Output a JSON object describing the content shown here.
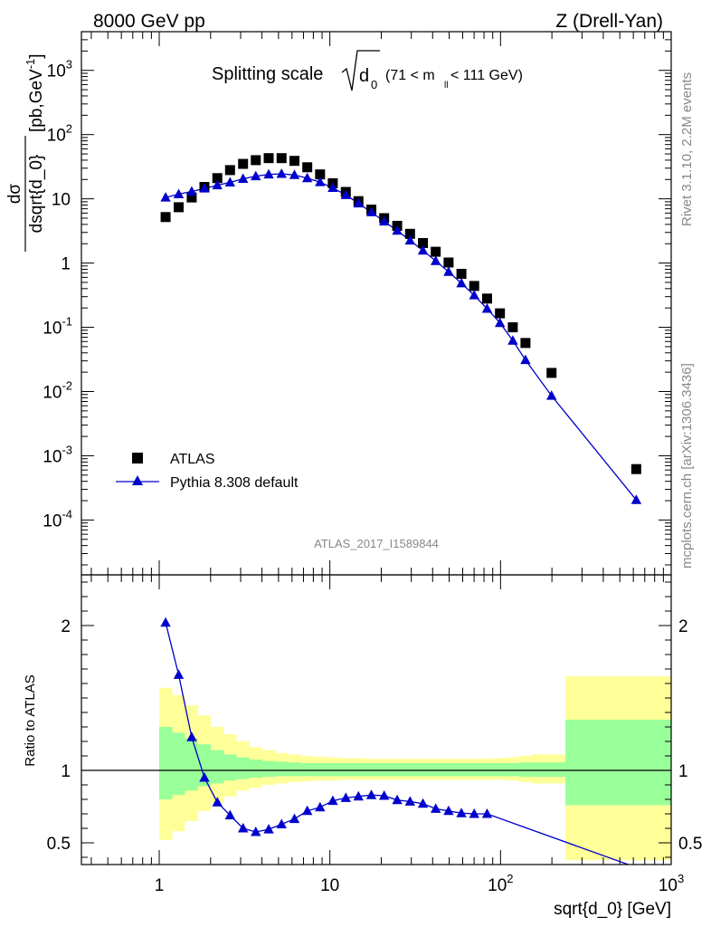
{
  "header": {
    "left": "8000 GeV pp",
    "right": "Z (Drell-Yan)"
  },
  "side_labels": {
    "rivet": "Rivet 3.1.10,  2.2M events",
    "mcplots": "mcplots.cern.ch [arXiv:1306.3436]"
  },
  "chart_data": [
    {
      "type": "scatter",
      "panel": "main",
      "title": "Splitting scale √d0 (71 < m_ll < 111 GeV)",
      "title_parts": {
        "main": "Splitting scale",
        "sub": "0",
        "var": "d",
        "range": "(71 < m",
        "range_sub": "ll",
        "range_end": " < 111 GeV)"
      },
      "analysis_label": "ATLAS_2017_I1589844",
      "ylabel": "dσ/dsqrt{d_0} [pb,GeV⁻¹]",
      "ylabel_parts": {
        "num": "dσ",
        "den": "dsqrt{d_0}",
        "unit": "[pb,GeV",
        "unit_sup": "-1",
        "unit_end": "]"
      },
      "xlabel": "sqrt{d_0} [GeV]",
      "xscale": "log",
      "yscale": "log",
      "xlim": [
        0.35,
        1000
      ],
      "ylim": [
        1.4e-05,
        4000
      ],
      "legend_position": "lower-left",
      "y_tick_labels": [
        {
          "value": 0.0001,
          "base": "10",
          "exp": "-4"
        },
        {
          "value": 0.001,
          "base": "10",
          "exp": "-3"
        },
        {
          "value": 0.01,
          "base": "10",
          "exp": "-2"
        },
        {
          "value": 0.1,
          "base": "10",
          "exp": "-1"
        },
        {
          "value": 1,
          "base": "1",
          "exp": ""
        },
        {
          "value": 10,
          "base": "10",
          "exp": ""
        },
        {
          "value": 100,
          "base": "10",
          "exp": "2"
        },
        {
          "value": 1000,
          "base": "10",
          "exp": "3"
        }
      ],
      "series": [
        {
          "name": "ATLAS",
          "marker": "square",
          "color": "#000000",
          "x": [
            1.09,
            1.3,
            1.55,
            1.84,
            2.19,
            2.6,
            3.1,
            3.68,
            4.38,
            5.21,
            6.2,
            7.37,
            8.76,
            10.4,
            12.4,
            14.7,
            17.5,
            20.8,
            24.8,
            29.5,
            35.1,
            41.7,
            49.6,
            59.0,
            70.1,
            83.4,
            99.2,
            118,
            140,
            199,
            624
          ],
          "y": [
            5.2,
            7.4,
            10.5,
            15.3,
            21,
            28,
            35,
            40,
            43,
            43,
            39,
            31,
            24,
            17.5,
            12.8,
            9.2,
            6.8,
            5.0,
            3.8,
            2.85,
            2.05,
            1.5,
            1.02,
            0.68,
            0.44,
            0.28,
            0.165,
            0.1,
            0.057,
            0.0195,
            0.00062
          ]
        },
        {
          "name": "Pythia 8.308 default",
          "marker": "triangle",
          "color": "#0000cc",
          "x": [
            1.09,
            1.3,
            1.55,
            1.84,
            2.19,
            2.6,
            3.1,
            3.68,
            4.38,
            5.21,
            6.2,
            7.37,
            8.76,
            10.4,
            12.4,
            14.7,
            17.5,
            20.8,
            24.8,
            29.5,
            35.1,
            41.7,
            49.6,
            59.0,
            70.1,
            83.4,
            99.2,
            118,
            140,
            199,
            624
          ],
          "y": [
            10.5,
            11.8,
            13.0,
            14.5,
            16.3,
            18.0,
            20.5,
            22.5,
            24.0,
            24.5,
            23.5,
            21.0,
            18.2,
            14.8,
            11.5,
            8.5,
            6.2,
            4.45,
            3.2,
            2.25,
            1.57,
            1.08,
            0.73,
            0.485,
            0.315,
            0.195,
            0.117,
            0.062,
            0.031,
            0.0086,
            0.000205
          ]
        }
      ]
    },
    {
      "type": "line",
      "panel": "ratio",
      "ylabel": "Ratio to ATLAS",
      "xlabel": "sqrt{d_0} [GeV]",
      "xscale": "log",
      "xlim": [
        0.35,
        1000
      ],
      "ylim": [
        0.35,
        2.35
      ],
      "y_ticks_major": [
        0.5,
        1,
        2
      ],
      "y_tick_labels": [
        "0.5",
        "1",
        "2"
      ],
      "x_tick_labels": [
        {
          "value": 1,
          "base": "1",
          "exp": ""
        },
        {
          "value": 10,
          "base": "10",
          "exp": ""
        },
        {
          "value": 100,
          "base": "10",
          "exp": "2"
        },
        {
          "value": 1000,
          "base": "10",
          "exp": "3"
        }
      ],
      "reference_line": 1,
      "bands": {
        "edges": [
          1.0,
          1.19,
          1.41,
          1.68,
          2.0,
          2.38,
          2.83,
          3.36,
          4.0,
          4.76,
          5.66,
          6.73,
          8.0,
          9.51,
          11.3,
          13.5,
          16.0,
          19.0,
          22.6,
          26.9,
          32.0,
          38.1,
          45.3,
          53.8,
          64.0,
          76.1,
          90.5,
          108,
          128,
          152,
          240,
          1000
        ],
        "yellow_lo": [
          0.52,
          0.58,
          0.65,
          0.72,
          0.78,
          0.82,
          0.86,
          0.88,
          0.9,
          0.91,
          0.92,
          0.925,
          0.93,
          0.93,
          0.935,
          0.935,
          0.935,
          0.935,
          0.935,
          0.935,
          0.935,
          0.935,
          0.935,
          0.935,
          0.935,
          0.935,
          0.935,
          0.93,
          0.92,
          0.91,
          0.38
        ],
        "yellow_hi": [
          1.57,
          1.52,
          1.45,
          1.38,
          1.3,
          1.25,
          1.2,
          1.16,
          1.14,
          1.12,
          1.11,
          1.1,
          1.095,
          1.09,
          1.085,
          1.085,
          1.08,
          1.08,
          1.08,
          1.08,
          1.08,
          1.08,
          1.08,
          1.08,
          1.08,
          1.08,
          1.085,
          1.09,
          1.1,
          1.11,
          1.65
        ],
        "green_lo": [
          0.8,
          0.83,
          0.86,
          0.89,
          0.91,
          0.93,
          0.94,
          0.95,
          0.955,
          0.96,
          0.96,
          0.96,
          0.96,
          0.96,
          0.96,
          0.96,
          0.96,
          0.96,
          0.96,
          0.96,
          0.96,
          0.96,
          0.96,
          0.96,
          0.96,
          0.96,
          0.96,
          0.96,
          0.955,
          0.955,
          0.76
        ],
        "green_hi": [
          1.3,
          1.26,
          1.22,
          1.18,
          1.14,
          1.11,
          1.09,
          1.075,
          1.065,
          1.06,
          1.055,
          1.05,
          1.05,
          1.05,
          1.05,
          1.05,
          1.05,
          1.05,
          1.05,
          1.05,
          1.05,
          1.05,
          1.05,
          1.05,
          1.05,
          1.05,
          1.05,
          1.05,
          1.055,
          1.055,
          1.35
        ],
        "yellow_color": "#ffff99",
        "green_color": "#99ff99"
      },
      "series": [
        {
          "name": "Pythia 8.308 default",
          "marker": "triangle",
          "color": "#0000cc",
          "x": [
            1.09,
            1.3,
            1.55,
            1.84,
            2.19,
            2.6,
            3.1,
            3.68,
            4.38,
            5.21,
            6.2,
            7.37,
            8.76,
            10.4,
            12.4,
            14.7,
            17.5,
            20.8,
            24.8,
            29.5,
            35.1,
            41.7,
            49.6,
            59.0,
            70.1,
            83.4,
            624
          ],
          "y": [
            2.02,
            1.66,
            1.23,
            0.95,
            0.78,
            0.69,
            0.6,
            0.575,
            0.593,
            0.628,
            0.665,
            0.72,
            0.745,
            0.79,
            0.81,
            0.82,
            0.83,
            0.825,
            0.795,
            0.785,
            0.77,
            0.735,
            0.72,
            0.705,
            0.7,
            0.7,
            0.33
          ]
        }
      ]
    }
  ]
}
